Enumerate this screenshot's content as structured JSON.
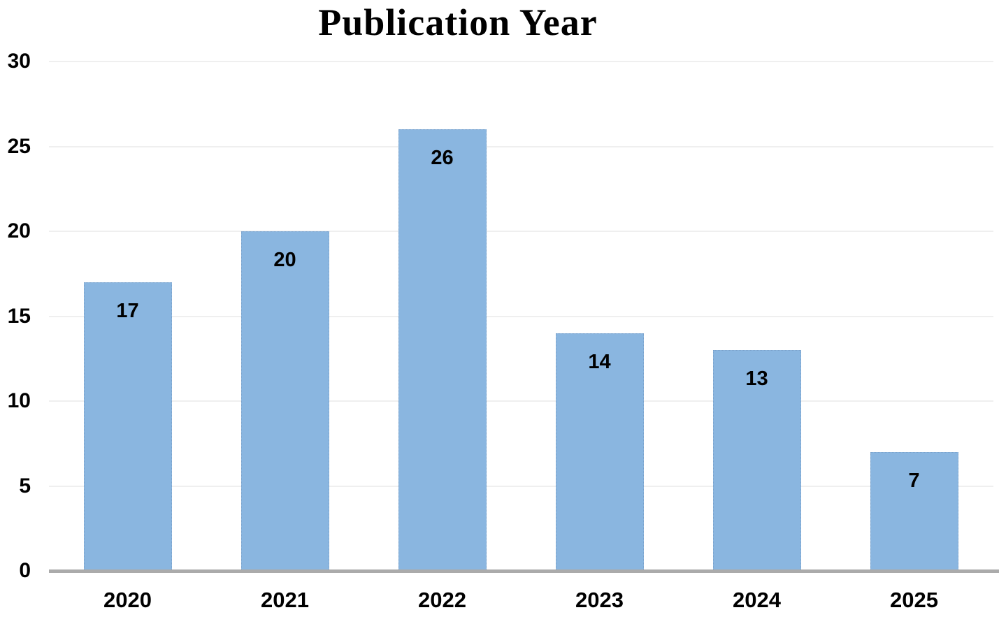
{
  "chart_data": {
    "type": "bar",
    "title": "Publication Year",
    "categories": [
      "2020",
      "2021",
      "2022",
      "2023",
      "2024",
      "2025"
    ],
    "values": [
      17,
      20,
      26,
      14,
      13,
      7
    ],
    "xlabel": "",
    "ylabel": "",
    "ylim": [
      0,
      30
    ],
    "yticks": [
      0,
      5,
      10,
      15,
      20,
      25,
      30
    ],
    "grid": true,
    "legend_position": "none",
    "data_labels": true
  },
  "colors": {
    "bar_fill": "#8AB6E0",
    "bar_border": "#6E91B9",
    "gridline": "#EFEFEF",
    "axis_line": "#ABABAB",
    "text": "#000000"
  }
}
